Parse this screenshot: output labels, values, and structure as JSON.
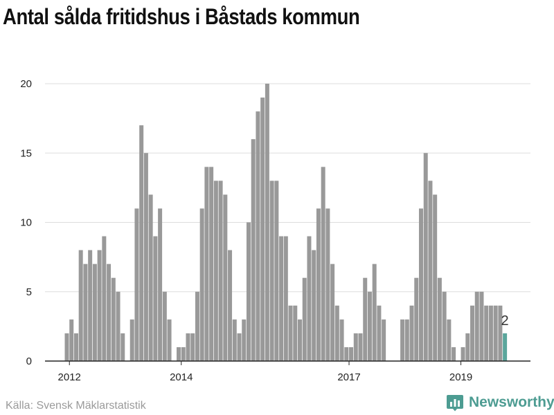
{
  "chart_data": {
    "type": "bar",
    "title": "Antal sålda fritidshus i Båstads kommun",
    "x_tick_labels": [
      "2012",
      "2014",
      "2017",
      "2019"
    ],
    "y_ticks": [
      "0",
      "5",
      "10",
      "15",
      "20"
    ],
    "ylim": [
      0,
      20
    ],
    "grid": true,
    "months": [
      "2011-12",
      "2012-01",
      "2012-02",
      "2012-03",
      "2012-04",
      "2012-05",
      "2012-06",
      "2012-07",
      "2012-08",
      "2012-09",
      "2012-10",
      "2012-11",
      "2012-12",
      "2013-01",
      "2013-02",
      "2013-03",
      "2013-04",
      "2013-05",
      "2013-06",
      "2013-07",
      "2013-08",
      "2013-09",
      "2013-10",
      "2013-11",
      "2013-12",
      "2014-01",
      "2014-02",
      "2014-03",
      "2014-04",
      "2014-05",
      "2014-06",
      "2014-07",
      "2014-08",
      "2014-09",
      "2014-10",
      "2014-11",
      "2014-12",
      "2015-01",
      "2015-02",
      "2015-03",
      "2015-04",
      "2015-05",
      "2015-06",
      "2015-07",
      "2015-08",
      "2015-09",
      "2015-10",
      "2015-11",
      "2015-12",
      "2016-01",
      "2016-02",
      "2016-03",
      "2016-04",
      "2016-05",
      "2016-06",
      "2016-07",
      "2016-08",
      "2016-09",
      "2016-10",
      "2016-11",
      "2016-12",
      "2017-01",
      "2017-02",
      "2017-03",
      "2017-04",
      "2017-05",
      "2017-06",
      "2017-07",
      "2017-08",
      "2017-09",
      "2017-10",
      "2017-11",
      "2017-12",
      "2018-01",
      "2018-02",
      "2018-03",
      "2018-04",
      "2018-05",
      "2018-06",
      "2018-07",
      "2018-08",
      "2018-09",
      "2018-10",
      "2018-11",
      "2018-12",
      "2019-01",
      "2019-02",
      "2019-03",
      "2019-04",
      "2019-05",
      "2019-06",
      "2019-07",
      "2019-08",
      "2019-09",
      "2019-10"
    ],
    "values": [
      2,
      3,
      2,
      8,
      7,
      8,
      7,
      8,
      9,
      7,
      6,
      5,
      2,
      0,
      3,
      11,
      17,
      15,
      12,
      9,
      11,
      5,
      3,
      0,
      1,
      1,
      2,
      2,
      5,
      11,
      14,
      14,
      13,
      13,
      12,
      8,
      3,
      2,
      3,
      10,
      16,
      18,
      19,
      20,
      13,
      13,
      9,
      9,
      4,
      4,
      3,
      6,
      9,
      8,
      11,
      14,
      11,
      7,
      4,
      3,
      1,
      1,
      2,
      2,
      6,
      5,
      7,
      4,
      3,
      0,
      0,
      0,
      3,
      3,
      4,
      6,
      11,
      15,
      13,
      12,
      6,
      5,
      3,
      1,
      0,
      1,
      2,
      4,
      5,
      5,
      4,
      4,
      4,
      4,
      2
    ],
    "highlight_last": true,
    "last_value_label": "2",
    "bar_color": "#999999",
    "highlight_color": "#5ba69c"
  },
  "footer": {
    "source": "Källa: Svensk Mäklarstatistik",
    "brand": "Newsworthy",
    "brand_color": "#4d9c92"
  }
}
